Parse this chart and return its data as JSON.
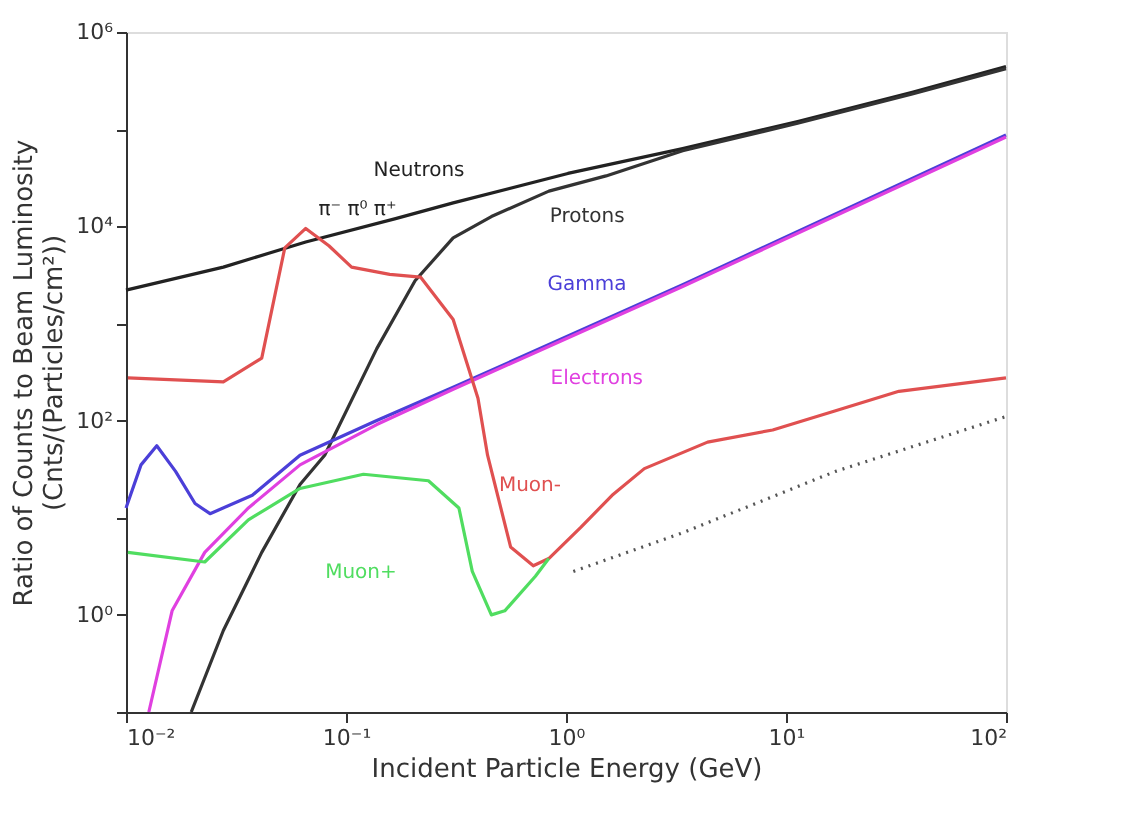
{
  "chart_data": {
    "type": "line",
    "xlabel": "Incident Particle Energy (GeV)",
    "ylabel": "Ratio of Counts to Beam Luminosity\n(Cnts/(Particles/cm²))",
    "log": "xy",
    "grid": false,
    "marker": "none",
    "xlim": [
      0.01,
      100
    ],
    "ylim": [
      0.1,
      1000000
    ],
    "xticks": [
      {
        "value": 0.01,
        "label": "10⁻²"
      },
      {
        "value": 0.1,
        "label": "10⁻¹"
      },
      {
        "value": 1,
        "label": "10⁰"
      },
      {
        "value": 10,
        "label": "10¹"
      },
      {
        "value": 100,
        "label": "10²"
      }
    ],
    "yticks": [
      {
        "value": 0.1,
        "label": null
      },
      {
        "value": 1,
        "label": "10⁰"
      },
      {
        "value": 10,
        "label": null
      },
      {
        "value": 100,
        "label": "10²"
      },
      {
        "value": 1000,
        "label": null
      },
      {
        "value": 10000,
        "label": "10⁴"
      },
      {
        "value": 100000,
        "label": null
      },
      {
        "value": 1000000,
        "label": "10⁶"
      }
    ],
    "series": [
      {
        "name": "Neutrons",
        "color": "#222222",
        "line_style": "solid",
        "x": [
          0.01,
          0.0277,
          0.0656,
          0.168,
          0.307,
          1.02,
          3.39,
          11.3,
          37.5,
          100
        ],
        "values": [
          2200,
          3800,
          6900,
          12000,
          17400,
          35000,
          63000,
          120000,
          240000,
          440000
        ]
      },
      {
        "name": "Protons",
        "color": "#333333",
        "line_style": "solid",
        "x": [
          0.0198,
          0.0277,
          0.0414,
          0.0618,
          0.08,
          0.138,
          0.206,
          0.307,
          0.458,
          0.836,
          1.52,
          3.39,
          11.3,
          37.5,
          100
        ],
        "values": [
          0.1,
          0.69,
          4.4,
          22,
          44,
          550,
          2750,
          7600,
          12600,
          23000,
          33000,
          60000,
          115000,
          230000,
          420000
        ]
      },
      {
        "name": "Gamma",
        "color": "#4b3fd8",
        "line_style": "solid",
        "x": [
          0.01,
          0.0117,
          0.0138,
          0.0168,
          0.0206,
          0.0241,
          0.0375,
          0.0618,
          0.138,
          0.307,
          3.39,
          100
        ],
        "values": [
          12.6,
          35,
          55,
          30,
          14,
          11,
          17,
          44,
          100,
          220,
          2500,
          87000
        ]
      },
      {
        "name": "Electrons",
        "color": "#e040e0",
        "line_style": "solid",
        "x": [
          0.0127,
          0.0162,
          0.0228,
          0.036,
          0.0618,
          0.138,
          0.307,
          3.39,
          100
        ],
        "values": [
          0.1,
          1.1,
          4.4,
          12.6,
          35,
          91,
          210,
          2400,
          83000
        ]
      },
      {
        "name": "Muon-",
        "color": "#e05050",
        "line_style": "solid",
        "x": [
          0.0102,
          0.0277,
          0.0414,
          0.0527,
          0.0656,
          0.0836,
          0.106,
          0.158,
          0.218,
          0.307,
          0.398,
          0.44,
          0.56,
          0.71,
          0.835,
          1.17,
          1.62,
          2.27,
          4.4,
          8.7,
          16.8,
          32.6,
          100
        ],
        "values": [
          275,
          250,
          440,
          6000,
          9500,
          6300,
          3800,
          3200,
          3000,
          1100,
          170,
          44,
          5,
          3.2,
          3.8,
          8,
          17,
          32,
          60,
          80,
          126,
          200,
          275
        ]
      },
      {
        "name": "Muon+",
        "color": "#50dd60",
        "line_style": "solid",
        "x": [
          0.0102,
          0.0228,
          0.036,
          0.0618,
          0.12,
          0.237,
          0.326,
          0.375,
          0.458,
          0.527,
          0.726,
          0.835
        ],
        "values": [
          4.4,
          3.5,
          9.5,
          20,
          28,
          24,
          12.6,
          2.8,
          1,
          1.1,
          2.5,
          3.8
        ]
      },
      {
        "color": "#555555",
        "line_style": "dotted",
        "x": [
          1.08,
          3.39,
          16.8,
          100
        ],
        "values": [
          2.8,
          7,
          30,
          110
        ]
      }
    ],
    "annotations": [
      "π⁻ π⁰ π⁺"
    ]
  }
}
